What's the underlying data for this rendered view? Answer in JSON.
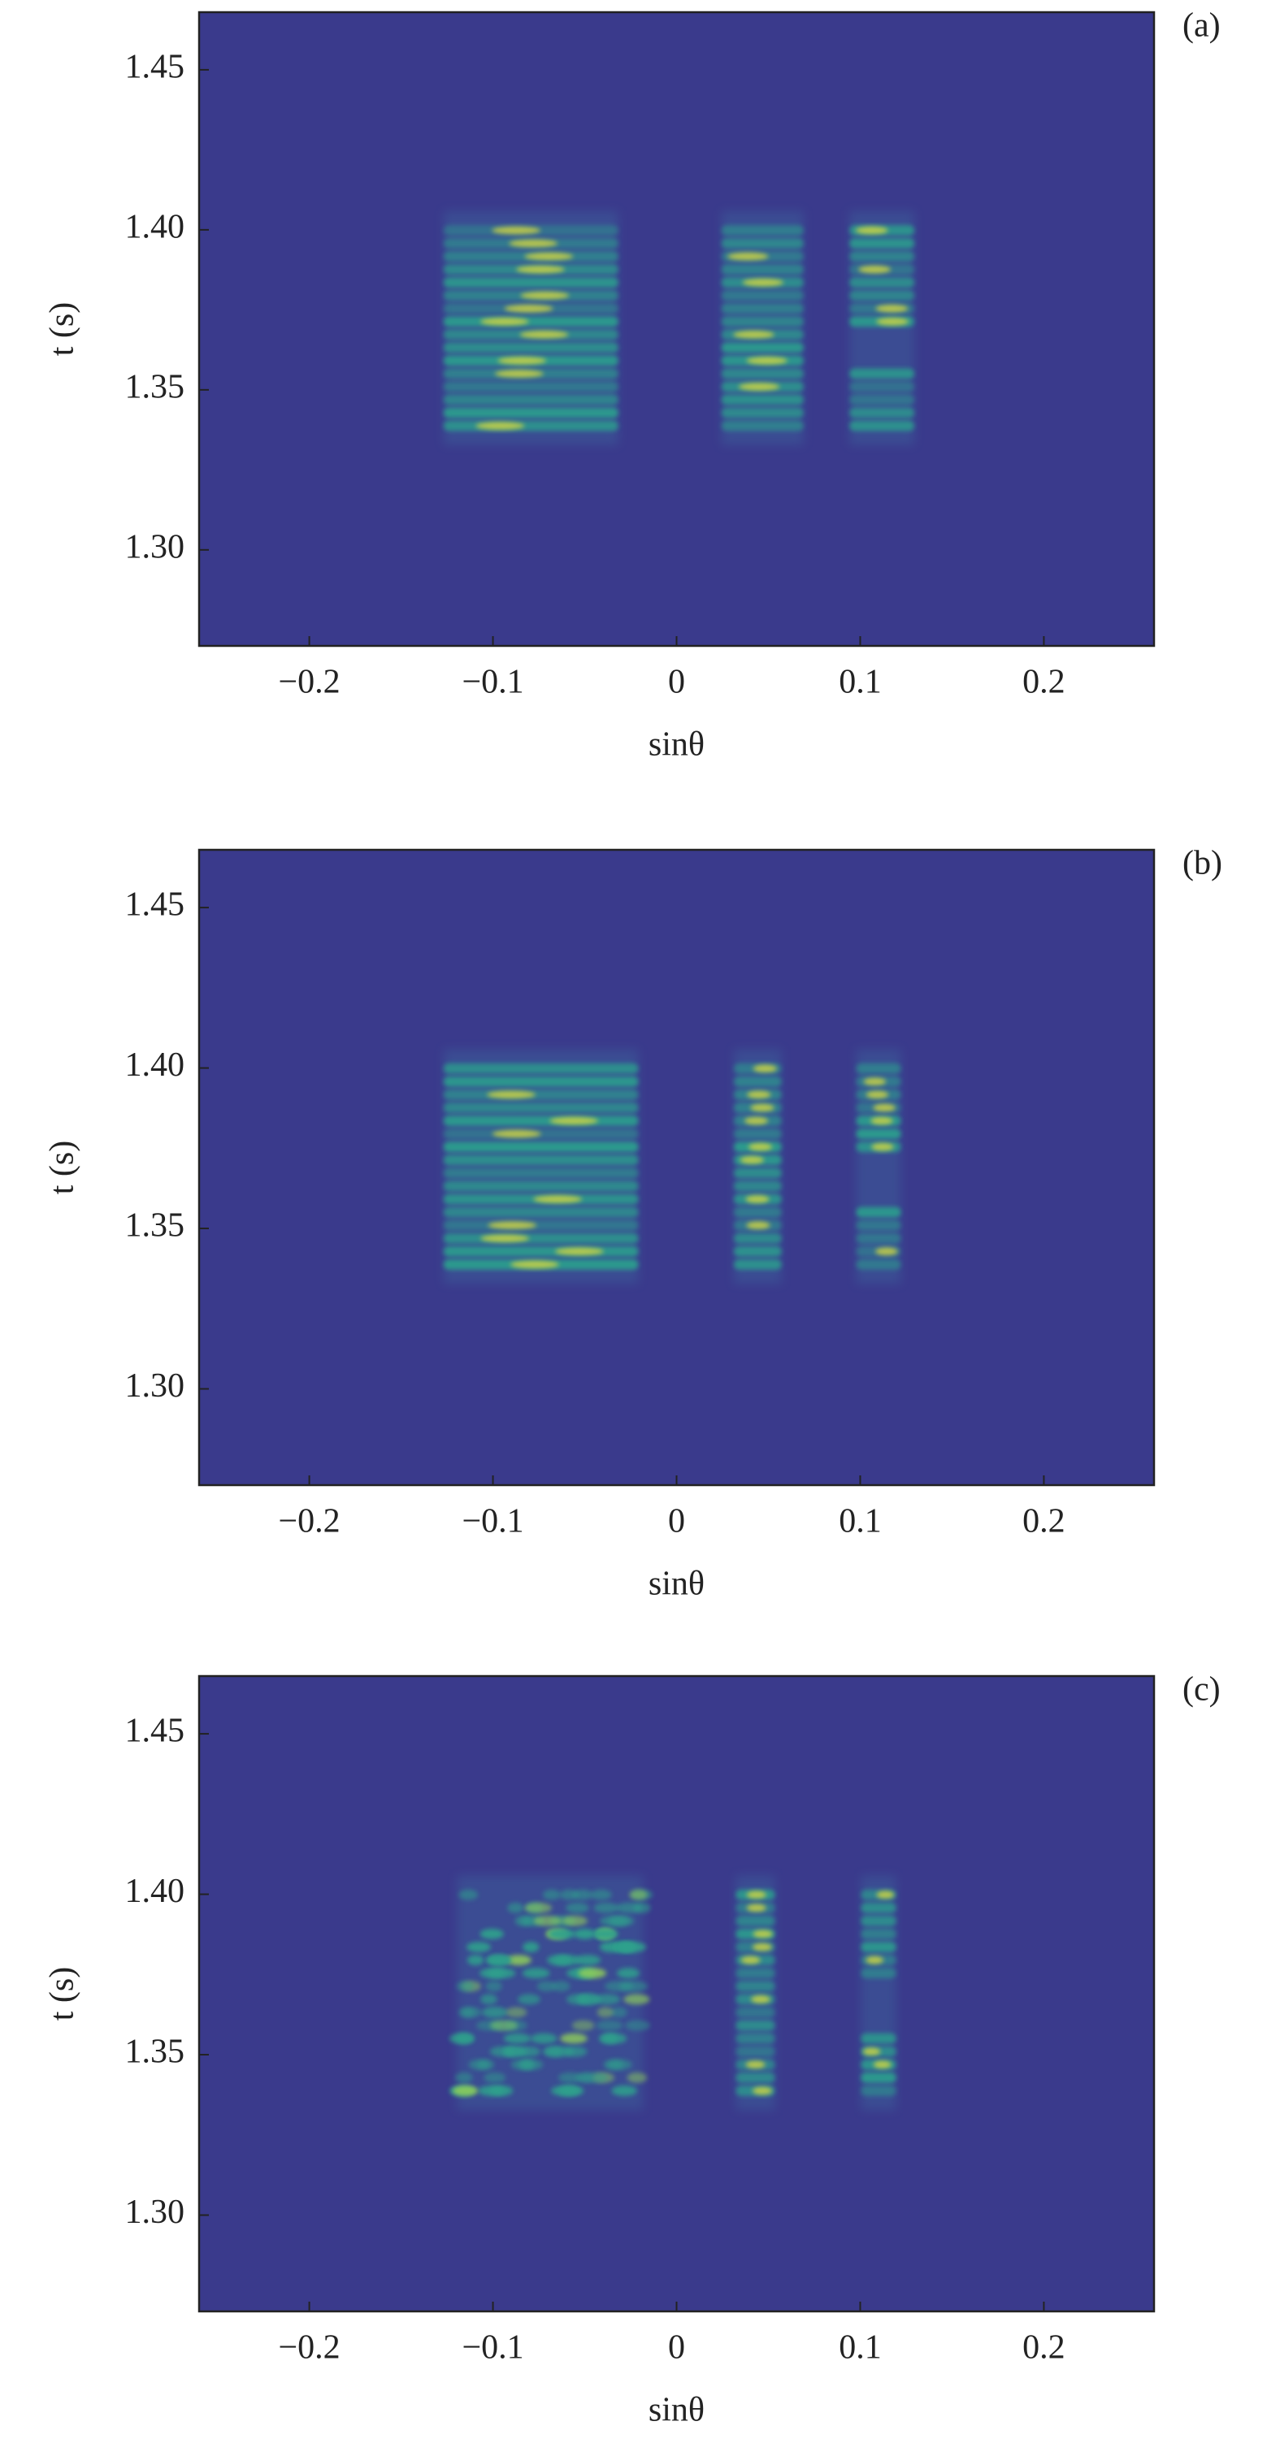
{
  "chart_data": [
    {
      "type": "heatmap",
      "panel_label": "(a)",
      "xlabel": "sinθ",
      "ylabel": "t (s)",
      "xlim": [
        -0.26,
        0.26
      ],
      "ylim": [
        1.27,
        1.468
      ],
      "xticks": [
        {
          "value": -0.2,
          "label": "−0.2"
        },
        {
          "value": -0.1,
          "label": "−0.1"
        },
        0,
        0.1,
        0.2
      ],
      "yticks": [
        {
          "value": 1.3,
          "label": "1.30"
        },
        1.35,
        {
          "value": 1.4,
          "label": "1.40"
        },
        1.45
      ],
      "background": "#3a3a8c"
    },
    {
      "type": "heatmap",
      "panel_label": "(b)",
      "xlabel": "sinθ",
      "ylabel": "t (s)",
      "xlim": [
        -0.26,
        0.26
      ],
      "ylim": [
        1.27,
        1.468
      ],
      "xticks": [
        {
          "value": -0.2,
          "label": "−0.2"
        },
        {
          "value": -0.1,
          "label": "−0.1"
        },
        0,
        0.1,
        0.2
      ],
      "yticks": [
        {
          "value": 1.3,
          "label": "1.30"
        },
        1.35,
        {
          "value": 1.4,
          "label": "1.40"
        },
        1.45
      ],
      "background": "#3a3a8c"
    },
    {
      "type": "heatmap",
      "panel_label": "(c)",
      "xlabel": "sinθ",
      "ylabel": "t (s)",
      "xlim": [
        -0.26,
        0.26
      ],
      "ylim": [
        1.27,
        1.468
      ],
      "xticks": [
        {
          "value": -0.2,
          "label": "−0.2"
        },
        {
          "value": -0.1,
          "label": "−0.1"
        },
        0,
        0.1,
        0.2
      ],
      "yticks": [
        {
          "value": 1.3,
          "label": "1.30"
        },
        1.35,
        {
          "value": 1.4,
          "label": "1.40"
        },
        1.45
      ],
      "background": "#3a3a8c"
    }
  ]
}
